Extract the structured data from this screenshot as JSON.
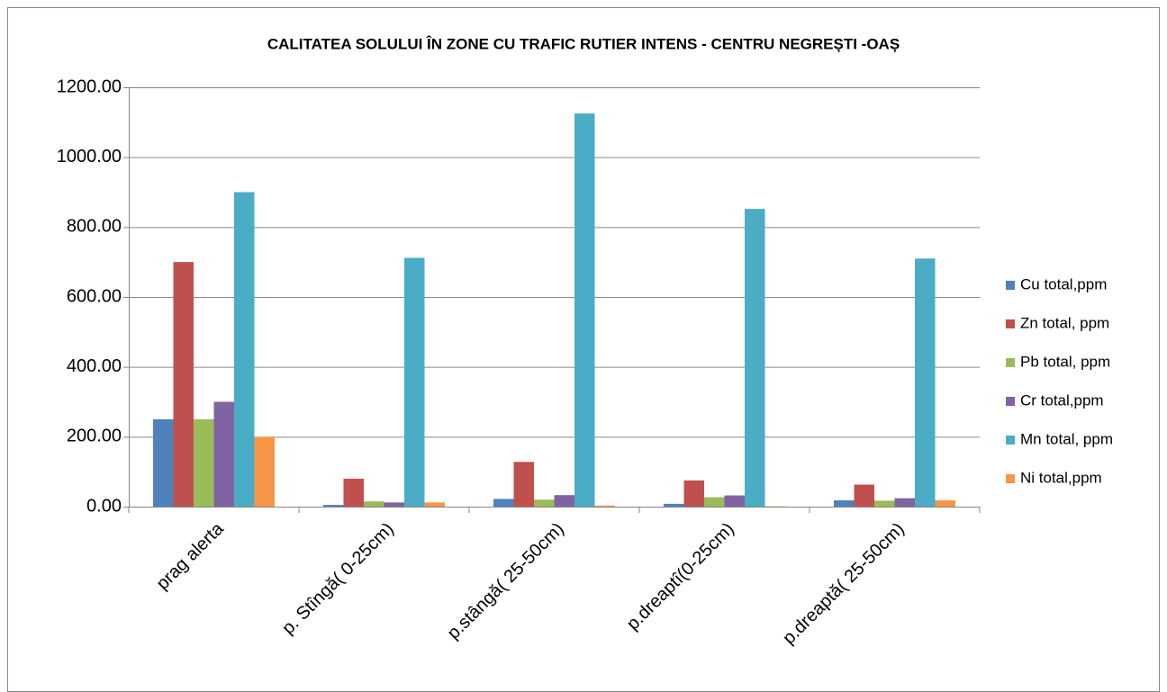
{
  "chart_data": {
    "type": "bar",
    "title": "CALITATEA SOLULUI ÎN ZONE CU TRAFIC RUTIER INTENS - CENTRU NEGREȘTI -OAȘ",
    "categories": [
      "prag alerta",
      "p. Stîngă( 0-25cm)",
      "p.stângă( 25-50cm)",
      "p.dreaptî(0-25cm)",
      "p.dreaptă( 25-50cm)"
    ],
    "series": [
      {
        "name": "Cu total,ppm",
        "color": "#4f81bd",
        "values": [
          250,
          5,
          22,
          8,
          18
        ]
      },
      {
        "name": "Zn total, ppm",
        "color": "#c0504d",
        "values": [
          700,
          80,
          128,
          75,
          63
        ]
      },
      {
        "name": "Pb total, ppm",
        "color": "#9bbb59",
        "values": [
          250,
          15,
          20,
          27,
          17
        ]
      },
      {
        "name": "Cr total,ppm",
        "color": "#8064a2",
        "values": [
          300,
          12,
          33,
          32,
          24
        ]
      },
      {
        "name": "Mn total, ppm",
        "color": "#4bacc6",
        "values": [
          900,
          712,
          1125,
          852,
          710
        ]
      },
      {
        "name": "Ni total,ppm",
        "color": "#f79646",
        "values": [
          200,
          12,
          3,
          1,
          18
        ]
      }
    ],
    "ylim": [
      0,
      1200
    ],
    "yticks": [
      {
        "value": 0,
        "label": "0.00"
      },
      {
        "value": 200,
        "label": "200.00"
      },
      {
        "value": 400,
        "label": "400.00"
      },
      {
        "value": 600,
        "label": "600.00"
      },
      {
        "value": 800,
        "label": "800.00"
      },
      {
        "value": 1000,
        "label": "1000.00"
      },
      {
        "value": 1200,
        "label": "1200.00"
      }
    ],
    "grid": true,
    "legend": "right"
  }
}
